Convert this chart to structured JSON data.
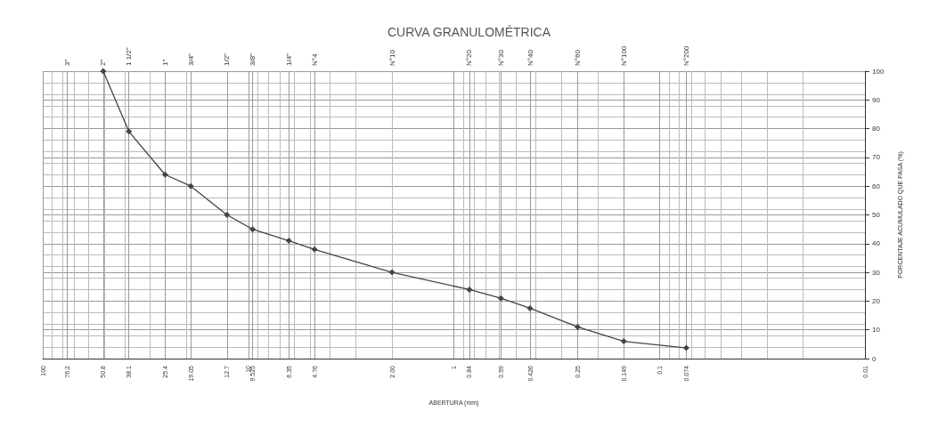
{
  "chart_data": {
    "type": "line",
    "title": "CURVA GRANULOMÉTRICA",
    "xlabel": "ABERTURA (mm)",
    "ylabel": "PORCENTAJE ACUMULADO QUE PASA (%)",
    "x": [
      50.8,
      38.1,
      25.4,
      19.05,
      12.7,
      9.525,
      6.35,
      4.76,
      2.0,
      0.84,
      0.59,
      0.426,
      0.25,
      0.149,
      0.074
    ],
    "series": [
      {
        "color": "#444444",
        "values": [
          100,
          79,
          64,
          60,
          50,
          45,
          41,
          38,
          30,
          24,
          21,
          17.5,
          11,
          6,
          3.7
        ]
      }
    ],
    "xlim": [
      100,
      0.01
    ],
    "xticks": [
      100,
      76.2,
      50.8,
      38.1,
      25.4,
      19.05,
      12.7,
      10,
      9.525,
      6.35,
      4.76,
      {
        "value": 2.0,
        "label": "2.00"
      },
      1,
      0.84,
      0.59,
      0.426,
      0.25,
      0.149,
      0.1,
      0.074,
      0.01
    ],
    "annotations": [
      "3\"",
      "2\"",
      "1 1/2\"",
      "1\"",
      "3/4\"",
      "1/2\"",
      "3/8\"",
      "1/4\"",
      "N°4",
      "N°10",
      "N°20",
      "N°30",
      "N°40",
      "N°60",
      "N°100",
      "N°200"
    ],
    "ylim": [
      0,
      100
    ],
    "yticks": [
      0,
      10,
      20,
      30,
      40,
      50,
      60,
      70,
      80,
      90,
      100
    ],
    "log": "x",
    "grid": true,
    "marker": "diamond",
    "line_style": "solid"
  }
}
